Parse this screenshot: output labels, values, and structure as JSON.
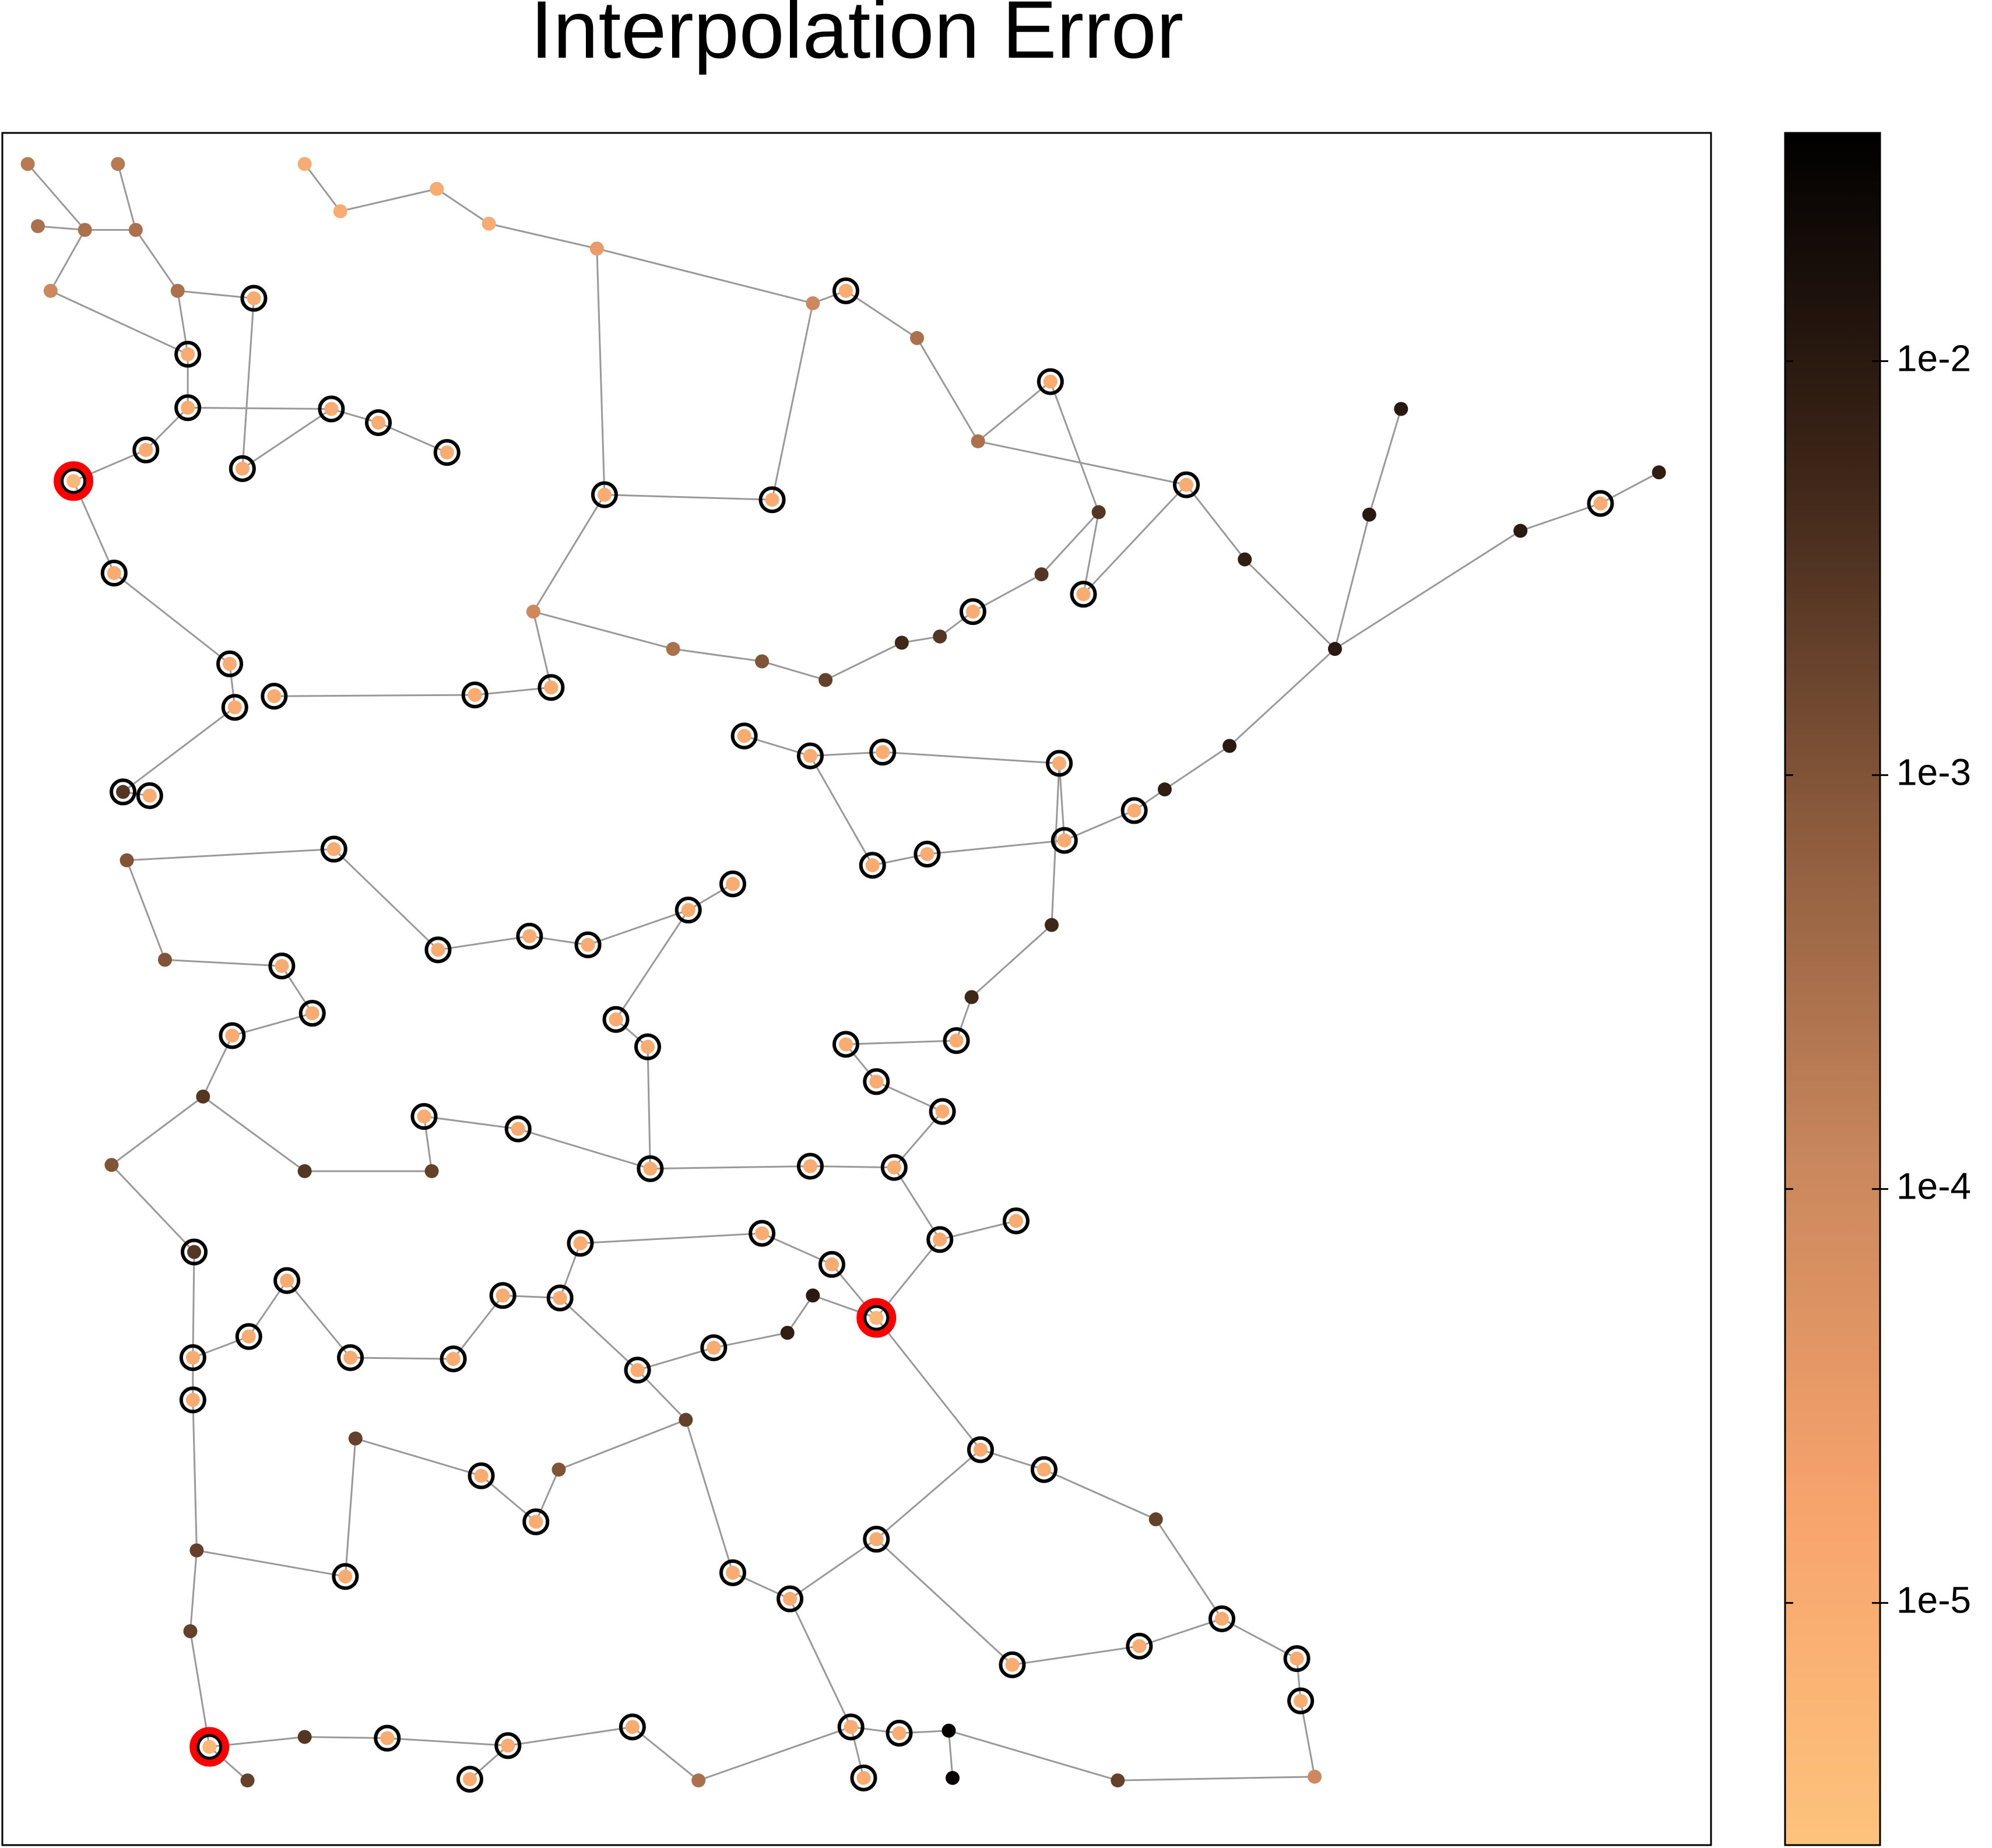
{
  "chart_data": {
    "type": "network",
    "title": "Interpolation Error",
    "xlim": [
      2,
      1347
    ],
    "ylim": [
      1482,
      105
    ],
    "log_color": true,
    "clim": [
      2.6e-06,
      0.0356
    ],
    "colormap": [
      "#fdc37c",
      "#f7a36c",
      "#c9875c",
      "#8a5a3c",
      "#3e2618",
      "#000000"
    ],
    "cticks": [
      {
        "value": 0.01,
        "label": "1e-2"
      },
      {
        "value": 0.001,
        "label": "1e-3"
      },
      {
        "value": 0.0001,
        "label": "1e-4"
      },
      {
        "value": 1e-05,
        "label": "1e-5"
      }
    ],
    "edge_color": "#999999",
    "ring_color": "#000000",
    "highlight_color": "#ff0000",
    "nodes": {
      "x": [
        22,
        93,
        67,
        107,
        30,
        40,
        140,
        200,
        148,
        148,
        115,
        58,
        191,
        261,
        298,
        352,
        240,
        268,
        344,
        385,
        470,
        640,
        666,
        722,
        476,
        608,
        770,
        827,
        934,
        1103,
        1078,
        1260,
        1197,
        1306,
        1051,
        980,
        968,
        893,
        853,
        766,
        90,
        181,
        185,
        97,
        118,
        216,
        374,
        434,
        420,
        586,
        638,
        695,
        834,
        838,
        730,
        687,
        577,
        542,
        463,
        417,
        345,
        263,
        222,
        183,
        246,
        485,
        510,
        666,
        753,
        742,
        690,
        334,
        408,
        88,
        153,
        226,
        196,
        152,
        152,
        276,
        357,
        441,
        396,
        457,
        512,
        600,
        655,
        690,
        740,
        800,
        562,
        502,
        638,
        704,
        640,
        620,
        772,
        822,
        379,
        422,
        272,
        690,
        577,
        622,
        797,
        897,
        962,
        1021,
        1024,
        165,
        305,
        400,
        370,
        498,
        670,
        708,
        680,
        750,
        747,
        1035,
        155,
        150,
        195,
        240,
        550,
        910,
        880,
        280,
        440,
        540,
        340,
        240,
        160,
        130,
        100,
        600,
        530,
        650,
        710,
        740,
        820,
        865,
        917,
        765,
        828
      ],
      "y": [
        130,
        130,
        183,
        183,
        180,
        232,
        232,
        238,
        283,
        326,
        360,
        385,
        375,
        327,
        338,
        362,
        130,
        168,
        150,
        178,
        198,
        242,
        232,
        270,
        396,
        400,
        353,
        305,
        388,
        327,
        412,
        403,
        425,
        378,
        520,
        448,
        598,
        650,
        476,
        490,
        459,
        532,
        567,
        635,
        638,
        558,
        557,
        551,
        490,
        590,
        606,
        603,
        612,
        674,
        685,
        694,
        709,
        730,
        758,
        751,
        762,
        681,
        775,
        831,
        813,
        818,
        840,
        838,
        835,
        892,
        868,
        896,
        906,
        935,
        1005,
        1028,
        1073,
        1090,
        1124,
        1090,
        1091,
        1042,
        1040,
        998,
        938,
        990,
        1015,
        1058,
        995,
        980,
        1082,
        1100,
        936,
        937,
        1040,
        1070,
        1164,
        1180,
        1185,
        1222,
        1266,
        1236,
        1263,
        1284,
        1337,
        1322,
        1300,
        1332,
        1366,
        1403,
        1396,
        1402,
        1429,
        1387,
        1387,
        1392,
        1428,
        1428,
        1390,
        1427,
        1245,
        1310,
        1430,
        1395,
        1430,
        1220,
        1430,
        1155,
        1180,
        1140,
        940,
        940,
        880,
        770,
        690,
        530,
        520,
        545,
        515,
        510,
        460,
        410,
        633,
        800,
        742
      ],
      "values": [
        0.0002,
        0.0002,
        0.0003,
        0.0003,
        0.0003,
        0.0001,
        0.0003,
        1e-05,
        1e-05,
        1e-05,
        1e-05,
        5e-06,
        1e-05,
        1e-05,
        1e-05,
        1e-05,
        1e-05,
        1e-05,
        1e-05,
        1e-05,
        3e-05,
        0.0001,
        1e-05,
        0.0003,
        1e-05,
        1e-05,
        0.0003,
        1e-05,
        1e-05,
        0.01,
        0.01,
        1e-05,
        0.01,
        0.008,
        0.01,
        0.008,
        0.01,
        1e-05,
        1e-05,
        1e-05,
        1e-05,
        1e-05,
        1e-05,
        0.003,
        1e-05,
        1e-05,
        1e-05,
        1e-05,
        0.0001,
        1e-05,
        1e-05,
        1e-05,
        1e-05,
        1e-05,
        1e-05,
        1e-05,
        1e-05,
        1e-05,
        1e-05,
        1e-05,
        1e-05,
        1e-05,
        1e-05,
        1e-05,
        1e-05,
        1e-05,
        1e-05,
        1e-05,
        1e-05,
        1e-05,
        1e-05,
        1e-05,
        1e-05,
        0.001,
        0.003,
        1e-05,
        1e-05,
        1e-05,
        1e-05,
        1e-05,
        1e-05,
        1e-05,
        1e-05,
        1e-05,
        1e-05,
        1e-05,
        1e-05,
        5e-06,
        1e-05,
        1e-05,
        1e-05,
        1e-05,
        1e-05,
        1e-05,
        0.01,
        0.008,
        1e-05,
        1e-05,
        1e-05,
        1e-05,
        1e-05,
        1e-05,
        1e-05,
        1e-05,
        1e-05,
        1e-05,
        1e-05,
        1e-05,
        1e-05,
        5e-06,
        1e-05,
        1e-05,
        1e-05,
        1e-05,
        1e-05,
        1e-05,
        1e-05,
        0.03,
        0.03,
        0.0001,
        0.002,
        0.002,
        0.002,
        0.003,
        0.0003,
        0.002,
        0.002,
        0.002,
        0.001,
        0.002,
        0.002,
        0.003,
        0.003,
        0.001,
        0.001,
        0.001,
        0.0003,
        0.002,
        0.005,
        0.003,
        0.003,
        0.003,
        0.008,
        0.005,
        0.005
      ]
    },
    "edges": [
      [
        0,
        2
      ],
      [
        1,
        3
      ],
      [
        2,
        3
      ],
      [
        2,
        4
      ],
      [
        2,
        5
      ],
      [
        3,
        6
      ],
      [
        6,
        7
      ],
      [
        5,
        8
      ],
      [
        6,
        8
      ],
      [
        8,
        9
      ],
      [
        9,
        10
      ],
      [
        10,
        11
      ],
      [
        9,
        13
      ],
      [
        13,
        14
      ],
      [
        14,
        15
      ],
      [
        7,
        12
      ],
      [
        12,
        13
      ],
      [
        16,
        17
      ],
      [
        17,
        18
      ],
      [
        18,
        19
      ],
      [
        19,
        20
      ],
      [
        20,
        24
      ],
      [
        20,
        21
      ],
      [
        21,
        22
      ],
      [
        22,
        23
      ],
      [
        23,
        26
      ],
      [
        26,
        27
      ],
      [
        26,
        28
      ],
      [
        28,
        35
      ],
      [
        35,
        34
      ],
      [
        34,
        36
      ],
      [
        36,
        142
      ],
      [
        142,
        37
      ],
      [
        34,
        30
      ],
      [
        30,
        29
      ],
      [
        34,
        32
      ],
      [
        32,
        31
      ],
      [
        31,
        33
      ],
      [
        21,
        25
      ],
      [
        24,
        25
      ],
      [
        24,
        48
      ],
      [
        11,
        40
      ],
      [
        40,
        41
      ],
      [
        41,
        42
      ],
      [
        42,
        43
      ],
      [
        43,
        44
      ],
      [
        45,
        46
      ],
      [
        46,
        47
      ],
      [
        47,
        48
      ],
      [
        48,
        136
      ],
      [
        136,
        135
      ],
      [
        135,
        137
      ],
      [
        137,
        138
      ],
      [
        138,
        139
      ],
      [
        139,
        39
      ],
      [
        39,
        140
      ],
      [
        140,
        141
      ],
      [
        141,
        38
      ],
      [
        38,
        28
      ],
      [
        141,
        27
      ],
      [
        49,
        50
      ],
      [
        50,
        51
      ],
      [
        51,
        52
      ],
      [
        52,
        53
      ],
      [
        53,
        37
      ],
      [
        50,
        55
      ],
      [
        55,
        54
      ],
      [
        54,
        53
      ],
      [
        56,
        57
      ],
      [
        57,
        58
      ],
      [
        58,
        59
      ],
      [
        59,
        60
      ],
      [
        60,
        61
      ],
      [
        61,
        134
      ],
      [
        134,
        133
      ],
      [
        133,
        62
      ],
      [
        62,
        64
      ],
      [
        64,
        63
      ],
      [
        63,
        132
      ],
      [
        132,
        131
      ],
      [
        131,
        130
      ],
      [
        130,
        71
      ],
      [
        71,
        72
      ],
      [
        72,
        84
      ],
      [
        57,
        65
      ],
      [
        65,
        66
      ],
      [
        66,
        84
      ],
      [
        67,
        68
      ],
      [
        68,
        143
      ],
      [
        143,
        144
      ],
      [
        144,
        52
      ],
      [
        69,
        70
      ],
      [
        70,
        67
      ],
      [
        69,
        93
      ],
      [
        84,
        92
      ],
      [
        92,
        93
      ],
      [
        93,
        88
      ],
      [
        88,
        89
      ],
      [
        85,
        86
      ],
      [
        86,
        87
      ],
      [
        87,
        88
      ],
      [
        87,
        94
      ],
      [
        94,
        95
      ],
      [
        95,
        90
      ],
      [
        90,
        91
      ],
      [
        91,
        81
      ],
      [
        81,
        82
      ],
      [
        82,
        80
      ],
      [
        80,
        79
      ],
      [
        79,
        75
      ],
      [
        75,
        76
      ],
      [
        76,
        77
      ],
      [
        77,
        78
      ],
      [
        78,
        120
      ],
      [
        74,
        77
      ],
      [
        74,
        73
      ],
      [
        73,
        132
      ],
      [
        83,
        85
      ],
      [
        83,
        81
      ],
      [
        96,
        97
      ],
      [
        96,
        87
      ],
      [
        97,
        125
      ],
      [
        125,
        106
      ],
      [
        106,
        107
      ],
      [
        107,
        108
      ],
      [
        108,
        119
      ],
      [
        105,
        106
      ],
      [
        104,
        105
      ],
      [
        101,
        104
      ],
      [
        101,
        96
      ],
      [
        102,
        103
      ],
      [
        103,
        101
      ],
      [
        102,
        129
      ],
      [
        129,
        91
      ],
      [
        98,
        99
      ],
      [
        99,
        128
      ],
      [
        128,
        129
      ],
      [
        98,
        127
      ],
      [
        127,
        100
      ],
      [
        100,
        120
      ],
      [
        120,
        121
      ],
      [
        121,
        109
      ],
      [
        109,
        122
      ],
      [
        109,
        123
      ],
      [
        123,
        110
      ],
      [
        110,
        111
      ],
      [
        111,
        112
      ],
      [
        111,
        113
      ],
      [
        113,
        124
      ],
      [
        124,
        114
      ],
      [
        114,
        115
      ],
      [
        115,
        118
      ],
      [
        118,
        117
      ],
      [
        118,
        126
      ],
      [
        126,
        119
      ],
      [
        114,
        116
      ],
      [
        103,
        114
      ]
    ],
    "sampled": [
      7,
      8,
      9,
      10,
      11,
      12,
      13,
      14,
      15,
      22,
      24,
      25,
      27,
      28,
      31,
      37,
      38,
      39,
      40,
      41,
      42,
      43,
      44,
      45,
      46,
      47,
      49,
      50,
      51,
      52,
      53,
      54,
      55,
      56,
      57,
      58,
      59,
      60,
      61,
      62,
      63,
      64,
      65,
      66,
      67,
      68,
      69,
      70,
      71,
      72,
      74,
      75,
      76,
      77,
      78,
      79,
      80,
      81,
      82,
      83,
      84,
      85,
      86,
      87,
      88,
      89,
      90,
      91,
      92,
      93,
      96,
      97,
      98,
      99,
      100,
      101,
      102,
      103,
      104,
      105,
      106,
      107,
      108,
      109,
      110,
      111,
      112,
      113,
      114,
      115,
      116
    ],
    "highlighted": [
      11,
      87,
      109
    ]
  }
}
